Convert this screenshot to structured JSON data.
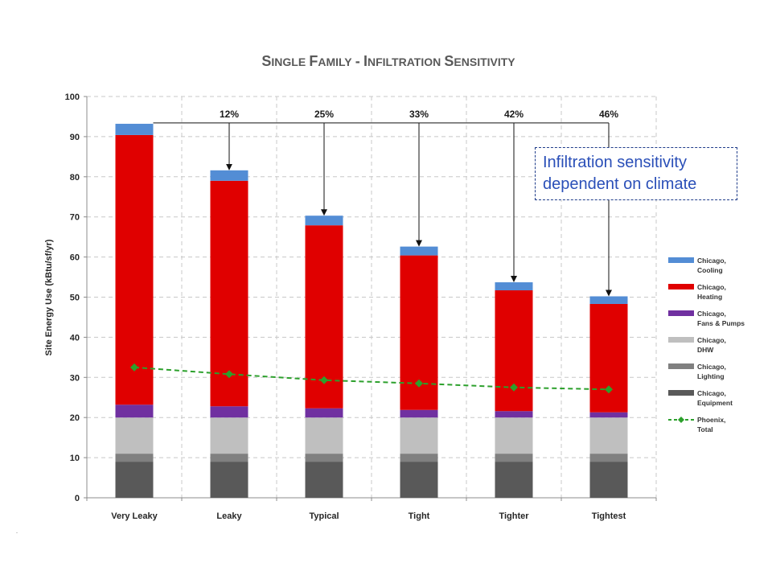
{
  "chart_data": {
    "type": "bar",
    "stacked": true,
    "title": "Single Family - Infiltration Sensitivity",
    "ylabel": "Site Energy Use (kBtu/sf/yr)",
    "xlabel": "",
    "ylim": [
      0,
      100
    ],
    "yticks": [
      0,
      10,
      20,
      30,
      40,
      50,
      60,
      70,
      80,
      90,
      100
    ],
    "grid": true,
    "legend_position": "right",
    "categories": [
      "Very Leaky",
      "Leaky",
      "Typical",
      "Tight",
      "Tighter",
      "Tightest"
    ],
    "series": [
      {
        "name": "Chicago, Equipment",
        "legend_lines": [
          "Chicago,",
          "Equipment"
        ],
        "color": "#595959",
        "values": [
          9,
          9,
          9,
          9,
          9,
          9
        ]
      },
      {
        "name": "Chicago, Lighting",
        "legend_lines": [
          "Chicago,",
          "Lighting"
        ],
        "color": "#808080",
        "values": [
          2,
          2,
          2,
          2,
          2,
          2
        ]
      },
      {
        "name": "Chicago, DHW",
        "legend_lines": [
          "Chicago,",
          "DHW"
        ],
        "color": "#bfbfbf",
        "values": [
          9,
          9,
          9,
          9,
          9,
          9
        ]
      },
      {
        "name": "Chicago, Fans & Pumps",
        "legend_lines": [
          "Chicago,",
          "Fans & Pumps"
        ],
        "color": "#7030a0",
        "values": [
          3.2,
          2.8,
          2.3,
          1.9,
          1.6,
          1.3
        ]
      },
      {
        "name": "Chicago, Heating",
        "legend_lines": [
          "Chicago,",
          "Heating"
        ],
        "color": "#e00000",
        "values": [
          67.2,
          56.2,
          45.6,
          38.5,
          30.1,
          27.0
        ]
      },
      {
        "name": "Chicago, Cooling",
        "legend_lines": [
          "Chicago,",
          "Cooling"
        ],
        "color": "#538dd5",
        "values": [
          2.8,
          2.6,
          2.4,
          2.2,
          2.0,
          1.9
        ]
      }
    ],
    "line_series": {
      "name": "Phoenix, Total",
      "legend_lines": [
        "Phoenix,",
        "Total"
      ],
      "color": "#2ca02c",
      "style": "dashed",
      "values": [
        32.5,
        30.8,
        29.3,
        28.5,
        27.5,
        27.0
      ]
    },
    "annotations": {
      "reduction_labels": [
        "",
        "12%",
        "25%",
        "33%",
        "42%",
        "46%"
      ]
    }
  },
  "callout": {
    "lines": [
      "Infiltration sensitivity",
      "dependent on climate"
    ]
  },
  "footer_mark": "-"
}
